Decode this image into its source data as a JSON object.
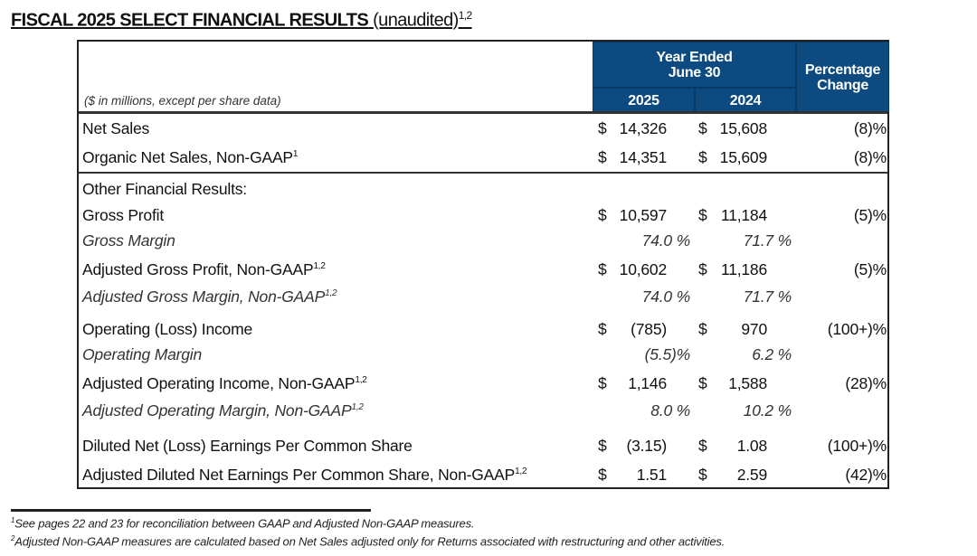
{
  "title": {
    "main": "FISCAL 2025 SELECT FINANCIAL RESULTS",
    "qualifier": "(unaudited)",
    "sup": "1,2"
  },
  "header": {
    "year_ended": "Year Ended",
    "june": "June 30",
    "col_2025": "2025",
    "col_2024": "2024",
    "pct_change_1": "Percentage",
    "pct_change_2": "Change",
    "units": "($ in millions, except per share data)"
  },
  "colors": {
    "header_blue": "#0c4a80"
  },
  "rows": [
    {
      "label": "Net Sales",
      "sup": "",
      "cur": "$",
      "v2025": "14,326",
      "v2024": "15,608",
      "pct": "(8)%"
    },
    {
      "label": "Organic Net Sales, Non-GAAP",
      "sup": "1",
      "cur": "$",
      "v2025": "14,351",
      "v2024": "15,609",
      "pct": "(8)%"
    },
    {
      "label": "Other Financial Results:"
    },
    {
      "label": "Gross Profit",
      "sup": "",
      "cur": "$",
      "v2025": "10,597",
      "v2024": "11,184",
      "pct": "(5)%"
    },
    {
      "label": "Gross Margin",
      "sup": "",
      "m2025": "74.0 %",
      "m2024": "71.7 %"
    },
    {
      "label": "Adjusted Gross Profit, Non-GAAP",
      "sup": "1,2",
      "cur": "$",
      "v2025": "10,602",
      "v2024": "11,186",
      "pct": "(5)%"
    },
    {
      "label": "Adjusted Gross Margin, Non-GAAP",
      "sup": "1,2",
      "m2025": "74.0 %",
      "m2024": "71.7 %"
    },
    {
      "label": "Operating (Loss) Income",
      "sup": "",
      "cur": "$",
      "v2025": "(785)",
      "v2024": "970",
      "pct": "(100+)%"
    },
    {
      "label": "Operating Margin",
      "sup": "",
      "m2025": "(5.5)%",
      "m2024": "6.2 %"
    },
    {
      "label": "Adjusted Operating Income, Non-GAAP",
      "sup": "1,2",
      "cur": "$",
      "v2025": "1,146",
      "v2024": "1,588",
      "pct": "(28)%"
    },
    {
      "label": "Adjusted Operating Margin, Non-GAAP",
      "sup": "1,2",
      "m2025": "8.0 %",
      "m2024": "10.2 %"
    },
    {
      "label": "Diluted Net (Loss) Earnings Per Common Share",
      "sup": "",
      "cur": "$",
      "v2025": "(3.15)",
      "v2024": "1.08",
      "pct": "(100+)%"
    },
    {
      "label": "Adjusted Diluted Net Earnings Per Common Share, Non-GAAP",
      "sup": "1,2",
      "cur": "$",
      "v2025": "1.51",
      "v2024": "2.59",
      "pct": "(42)%"
    }
  ],
  "footnotes": [
    {
      "sup": "1",
      "text": "See pages 22 and 23 for reconciliation between GAAP and Adjusted Non-GAAP measures."
    },
    {
      "sup": "2",
      "text": "Adjusted Non-GAAP measures are calculated based on Net Sales adjusted only for Returns associated with restructuring and other activities."
    }
  ]
}
